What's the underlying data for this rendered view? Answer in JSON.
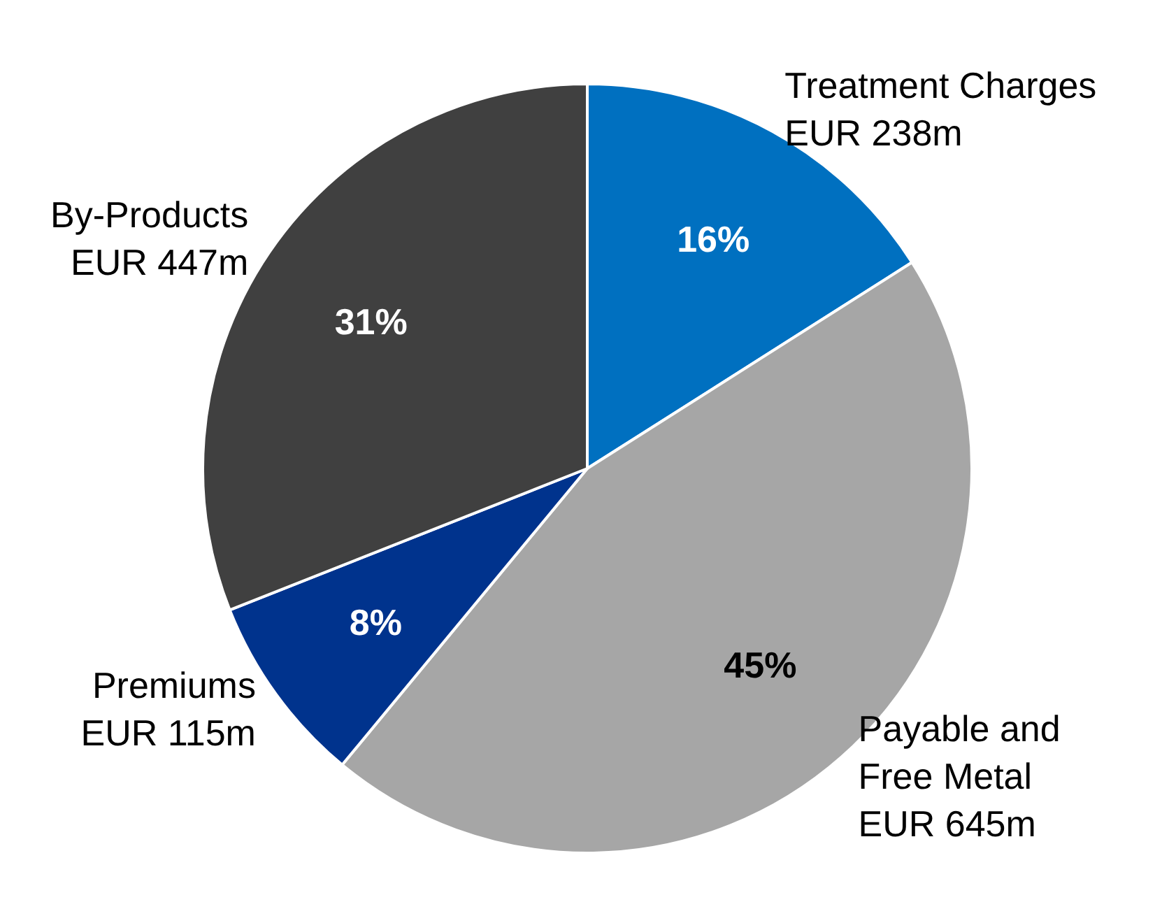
{
  "chart_data": {
    "type": "pie",
    "categories": [
      "Treatment Charges\nEUR 238m",
      "Payable and\nFree Metal\nEUR 645m",
      "Premiums\nEUR 115m",
      "By-Products\nEUR 447m"
    ],
    "values": [
      16,
      45,
      8,
      31
    ],
    "colors": [
      "#0070c0",
      "#a6a6a6",
      "#00338d",
      "#404040"
    ],
    "value_labels": [
      "16%",
      "45%",
      "8%",
      "31%"
    ],
    "legend": false
  }
}
